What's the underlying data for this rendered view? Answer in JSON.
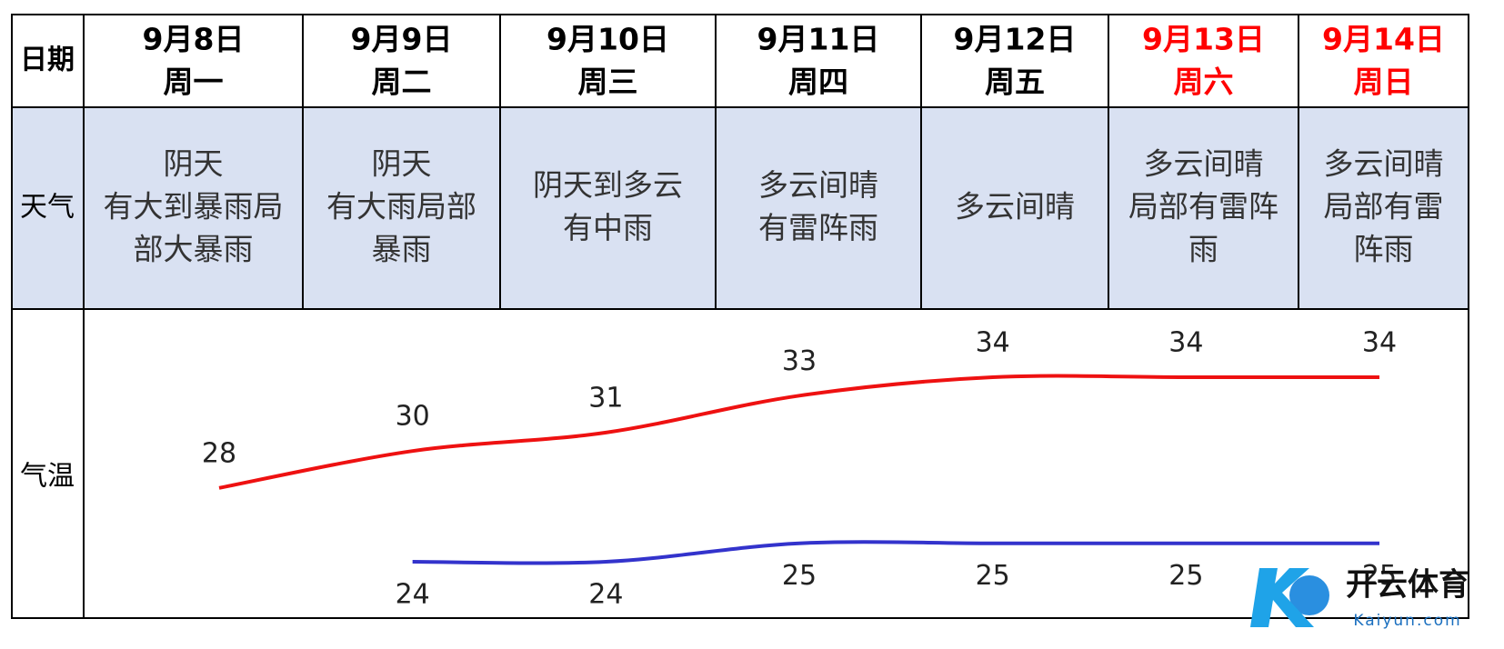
{
  "row_labels": [
    "日期",
    "天气",
    "气温"
  ],
  "days": [
    {
      "date": "9月8日",
      "weekday": "周一",
      "color": "#000000",
      "weather": [
        "阴天",
        "有大到暴雨局",
        "部大暴雨"
      ]
    },
    {
      "date": "9月9日",
      "weekday": "周二",
      "color": "#000000",
      "weather": [
        "阴天",
        "有大雨局部",
        "暴雨"
      ]
    },
    {
      "date": "9月10日",
      "weekday": "周三",
      "color": "#000000",
      "weather": [
        "阴天到多云",
        "有中雨"
      ]
    },
    {
      "date": "9月11日",
      "weekday": "周四",
      "color": "#000000",
      "weather": [
        "多云间晴",
        "有雷阵雨"
      ]
    },
    {
      "date": "9月12日",
      "weekday": "周五",
      "color": "#000000",
      "weather": [
        "多云间晴"
      ]
    },
    {
      "date": "9月13日",
      "weekday": "周六",
      "color": "#ff0000",
      "weather": [
        "多云间晴",
        "局部有雷阵",
        "雨"
      ]
    },
    {
      "date": "9月14日",
      "weekday": "周日",
      "color": "#ff0000",
      "weather": [
        "多云间晴",
        "局部有雷",
        "阵雨"
      ]
    }
  ],
  "temperature": {
    "high": {
      "color": "#ee1111",
      "values": [
        28,
        30,
        31,
        33,
        34,
        34,
        34
      ]
    },
    "low": {
      "color": "#3333cc",
      "values": [
        null,
        24,
        24,
        25,
        25,
        25,
        25
      ]
    }
  },
  "weather_row_color": "#d9e1f2",
  "watermark": {
    "brand": "开云体育",
    "site": "Kaiyun.com"
  }
}
